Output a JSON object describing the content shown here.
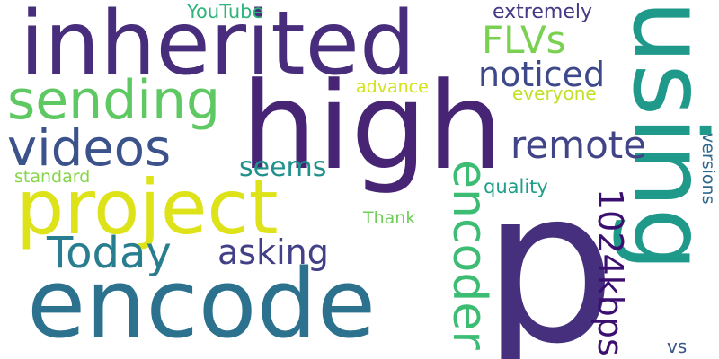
{
  "words": [
    {
      "text": "inherited",
      "color": "#472d7b",
      "orientation": "horizontal"
    },
    {
      "text": "high",
      "color": "#482475",
      "orientation": "horizontal"
    },
    {
      "text": "p",
      "color": "#46307e",
      "orientation": "horizontal"
    },
    {
      "text": "using",
      "color": "#1f9a8a",
      "orientation": "vertical"
    },
    {
      "text": "encode",
      "color": "#2c728e",
      "orientation": "horizontal"
    },
    {
      "text": "project",
      "color": "#dde318",
      "orientation": "horizontal"
    },
    {
      "text": "sending",
      "color": "#5ec962",
      "orientation": "horizontal"
    },
    {
      "text": "videos",
      "color": "#3b528b",
      "orientation": "horizontal"
    },
    {
      "text": "remote",
      "color": "#414487",
      "orientation": "horizontal"
    },
    {
      "text": "encoder",
      "color": "#3dbc74",
      "orientation": "vertical"
    },
    {
      "text": "FLVs",
      "color": "#7ad151",
      "orientation": "horizontal"
    },
    {
      "text": "noticed",
      "color": "#3e4989",
      "orientation": "horizontal"
    },
    {
      "text": "Today",
      "color": "#287d8e",
      "orientation": "horizontal"
    },
    {
      "text": "1024kbps",
      "color": "#3b0f70",
      "orientation": "vertical"
    },
    {
      "text": "asking",
      "color": "#424086",
      "orientation": "horizontal"
    },
    {
      "text": "seems",
      "color": "#21918c",
      "orientation": "horizontal"
    },
    {
      "text": "extremely",
      "color": "#443983",
      "orientation": "horizontal"
    },
    {
      "text": "YouTube",
      "color": "#2fb47c",
      "orientation": "horizontal"
    },
    {
      "text": "advance",
      "color": "#d2e21b",
      "orientation": "horizontal"
    },
    {
      "text": "everyone",
      "color": "#c2df23",
      "orientation": "horizontal"
    },
    {
      "text": "versions",
      "color": "#31688e",
      "orientation": "vertical"
    },
    {
      "text": "quality",
      "color": "#1f9e89",
      "orientation": "horizontal"
    },
    {
      "text": "standard",
      "color": "#86d549",
      "orientation": "horizontal"
    },
    {
      "text": "Thank",
      "color": "#6ece58",
      "orientation": "horizontal"
    },
    {
      "text": "vs",
      "color": "#39568c",
      "orientation": "horizontal"
    }
  ]
}
